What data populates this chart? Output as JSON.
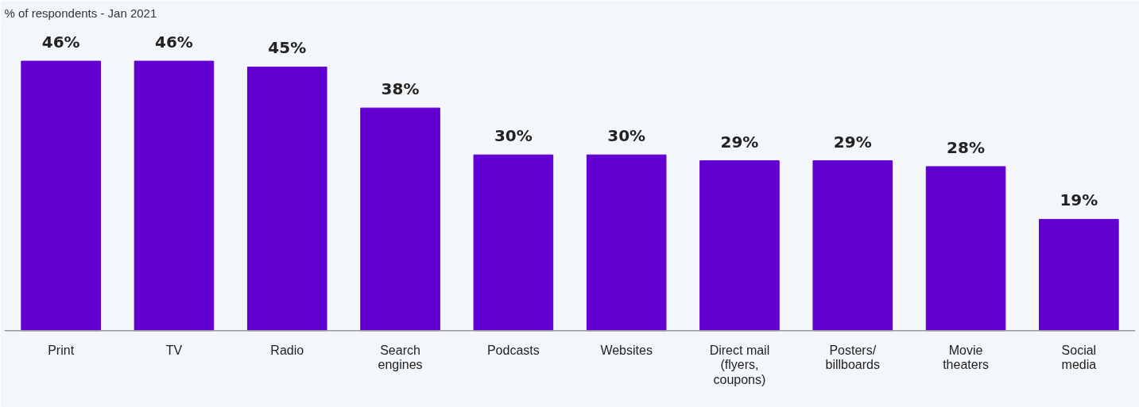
{
  "chart_data": {
    "type": "bar",
    "subtitle": "% of respondents - Jan 2021",
    "categories": [
      "Print",
      "TV",
      "Radio",
      "Search engines",
      "Podcasts",
      "Websites",
      "Direct mail (flyers, coupons)",
      "Posters/ billboards",
      "Movie theaters",
      "Social media"
    ],
    "values": [
      46,
      46,
      45,
      38,
      30,
      30,
      29,
      29,
      28,
      19
    ],
    "color": "#6200d2",
    "data_labels": true,
    "value_labels": [
      "46%",
      "46%",
      "45%",
      "38%",
      "30%",
      "30%",
      "29%",
      "29%",
      "28%",
      "19%"
    ],
    "grid": false
  }
}
